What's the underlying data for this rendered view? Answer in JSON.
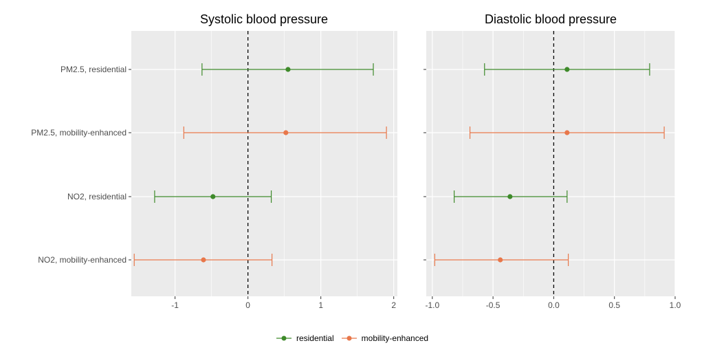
{
  "colors": {
    "residential": "#3e8a2a",
    "mobility-enhanced": "#e8774a"
  },
  "chart_data": [
    {
      "type": "forest",
      "title": "Systolic blood pressure",
      "categories": [
        "PM2.5, residential",
        "PM2.5, mobility-enhanced",
        "NO2, residential",
        "NO2, mobility-enhanced"
      ],
      "xlim": [
        -1.6,
        2.05
      ],
      "xticks": [
        -1,
        0,
        1,
        2
      ],
      "xtick_labels": [
        "-1",
        "0",
        "1",
        "2"
      ],
      "reference_line": 0,
      "points": [
        {
          "category": "PM2.5, residential",
          "series": "residential",
          "estimate": 0.55,
          "lower": -0.63,
          "upper": 1.72
        },
        {
          "category": "PM2.5, mobility-enhanced",
          "series": "mobility-enhanced",
          "estimate": 0.52,
          "lower": -0.88,
          "upper": 1.9
        },
        {
          "category": "NO2, residential",
          "series": "residential",
          "estimate": -0.48,
          "lower": -1.28,
          "upper": 0.32
        },
        {
          "category": "NO2, mobility-enhanced",
          "series": "mobility-enhanced",
          "estimate": -0.61,
          "lower": -1.56,
          "upper": 0.33
        }
      ]
    },
    {
      "type": "forest",
      "title": "Diastolic blood pressure",
      "categories": [
        "PM2.5, residential",
        "PM2.5, mobility-enhanced",
        "NO2, residential",
        "NO2, mobility-enhanced"
      ],
      "xlim": [
        -1.05,
        1.0
      ],
      "xticks": [
        -1.0,
        -0.5,
        0.0,
        0.5,
        1.0
      ],
      "xtick_labels": [
        "-1.0",
        "-0.5",
        "0.0",
        "0.5",
        "1.0"
      ],
      "reference_line": 0,
      "points": [
        {
          "category": "PM2.5, residential",
          "series": "residential",
          "estimate": 0.11,
          "lower": -0.57,
          "upper": 0.79
        },
        {
          "category": "PM2.5, mobility-enhanced",
          "series": "mobility-enhanced",
          "estimate": 0.11,
          "lower": -0.69,
          "upper": 0.91
        },
        {
          "category": "NO2, residential",
          "series": "residential",
          "estimate": -0.36,
          "lower": -0.82,
          "upper": 0.11
        },
        {
          "category": "NO2, mobility-enhanced",
          "series": "mobility-enhanced",
          "estimate": -0.44,
          "lower": -0.98,
          "upper": 0.12
        }
      ]
    }
  ],
  "legend": [
    {
      "key": "residential",
      "label": "residential"
    },
    {
      "key": "mobility-enhanced",
      "label": "mobility-enhanced"
    }
  ]
}
